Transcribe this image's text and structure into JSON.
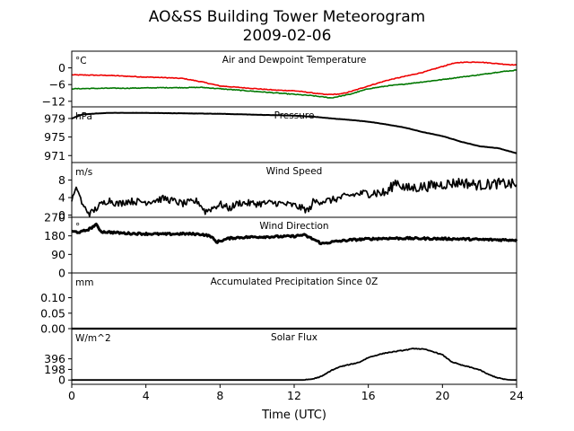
{
  "chart_data": {
    "type": "line",
    "title": "AO&SS Building Tower Meteorogram",
    "subtitle": "2009-02-06",
    "xlabel": "Time (UTC)",
    "x_ticks": [
      "0",
      "4",
      "8",
      "12",
      "16",
      "20",
      "24"
    ],
    "xlim": [
      0,
      24
    ],
    "panels": [
      {
        "name": "temperature",
        "title": "Air and Dewpoint Temperature",
        "unit": "°C",
        "ylim": [
          -14,
          6
        ],
        "ticks": [
          0,
          -6,
          -12
        ],
        "tick_labels": [
          "0",
          "−6",
          "−12"
        ],
        "series": [
          {
            "color": "#ee0000",
            "points": [
              [
                0,
                -2.5
              ],
              [
                1,
                -2.6
              ],
              [
                2,
                -2.7
              ],
              [
                3,
                -3.0
              ],
              [
                4,
                -3.3
              ],
              [
                5,
                -3.5
              ],
              [
                6,
                -3.8
              ],
              [
                7,
                -5.0
              ],
              [
                8,
                -6.5
              ],
              [
                9,
                -7.0
              ],
              [
                10,
                -7.5
              ],
              [
                11,
                -8.0
              ],
              [
                12,
                -8.2
              ],
              [
                13,
                -9.0
              ],
              [
                13.7,
                -9.6
              ],
              [
                14.5,
                -9.4
              ],
              [
                15,
                -8.6
              ],
              [
                16,
                -6.5
              ],
              [
                17,
                -4.5
              ],
              [
                18,
                -3.0
              ],
              [
                19,
                -1.5
              ],
              [
                20,
                0.5
              ],
              [
                20.5,
                1.5
              ],
              [
                21,
                2.0
              ],
              [
                22,
                2.1
              ],
              [
                23,
                1.5
              ],
              [
                24,
                1.0
              ]
            ]
          },
          {
            "color": "#007700",
            "points": [
              [
                0,
                -7.5
              ],
              [
                1,
                -7.4
              ],
              [
                2,
                -7.3
              ],
              [
                3,
                -7.3
              ],
              [
                4,
                -7.2
              ],
              [
                5,
                -7.1
              ],
              [
                6,
                -7.1
              ],
              [
                7,
                -7.0
              ],
              [
                8,
                -7.5
              ],
              [
                9,
                -8.0
              ],
              [
                10,
                -8.5
              ],
              [
                11,
                -9.0
              ],
              [
                12,
                -9.5
              ],
              [
                13,
                -10.0
              ],
              [
                14,
                -10.8
              ],
              [
                15,
                -9.5
              ],
              [
                16,
                -7.5
              ],
              [
                17,
                -6.5
              ],
              [
                18,
                -5.8
              ],
              [
                19,
                -5.0
              ],
              [
                20,
                -4.2
              ],
              [
                21,
                -3.3
              ],
              [
                22,
                -2.5
              ],
              [
                23,
                -1.5
              ],
              [
                24,
                -0.8
              ]
            ]
          }
        ]
      },
      {
        "name": "pressure",
        "title": "Pressure",
        "unit": "hPa",
        "ylim": [
          969.5,
          981.5
        ],
        "ticks": [
          979,
          975,
          971
        ],
        "tick_labels": [
          "979",
          "975",
          "971"
        ],
        "series": [
          {
            "color": "#000000",
            "points": [
              [
                0,
                979.0
              ],
              [
                0.6,
                979.9
              ],
              [
                2,
                980.2
              ],
              [
                4,
                980.2
              ],
              [
                6,
                980.1
              ],
              [
                8,
                980.0
              ],
              [
                10,
                979.8
              ],
              [
                12,
                979.6
              ],
              [
                13,
                979.4
              ],
              [
                14,
                979.0
              ],
              [
                15,
                978.7
              ],
              [
                16,
                978.3
              ],
              [
                17,
                977.7
              ],
              [
                18,
                977.0
              ],
              [
                19,
                976.0
              ],
              [
                20,
                975.2
              ],
              [
                21,
                974.0
              ],
              [
                22,
                973.0
              ],
              [
                23,
                972.6
              ],
              [
                24,
                971.5
              ]
            ]
          }
        ]
      },
      {
        "name": "wind-speed",
        "title": "Wind Speed",
        "unit": "m/s",
        "ylim": [
          -0.5,
          12
        ],
        "ticks": [
          8,
          4,
          0
        ],
        "tick_labels": [
          "8",
          "4",
          "0"
        ],
        "series": [
          {
            "color": "#000000",
            "points": [
              [
                0,
                3.5
              ],
              [
                0.3,
                6.2
              ],
              [
                0.6,
                2.0
              ],
              [
                1.0,
                0.3
              ],
              [
                1.5,
                2.2
              ],
              [
                2,
                3.5
              ],
              [
                2.5,
                2.5
              ],
              [
                3,
                3.2
              ],
              [
                4,
                3.0
              ],
              [
                5,
                3.8
              ],
              [
                6,
                2.6
              ],
              [
                6.8,
                3.2
              ],
              [
                7.2,
                0.8
              ],
              [
                8,
                2.5
              ],
              [
                8.5,
                1.5
              ],
              [
                9,
                2.8
              ],
              [
                10,
                2.6
              ],
              [
                11,
                2.8
              ],
              [
                12,
                2.2
              ],
              [
                12.8,
                1.0
              ],
              [
                13,
                3.0
              ],
              [
                14,
                3.4
              ],
              [
                15,
                4.5
              ],
              [
                16,
                5.2
              ],
              [
                17,
                5.0
              ],
              [
                17.5,
                7.8
              ],
              [
                18,
                6.0
              ],
              [
                19,
                6.5
              ],
              [
                20,
                7.0
              ],
              [
                21,
                7.5
              ],
              [
                22,
                6.8
              ],
              [
                23,
                7.2
              ],
              [
                24,
                7.0
              ]
            ]
          }
        ]
      },
      {
        "name": "wind-direction",
        "title": "Wind Direction",
        "unit": "°",
        "ylim": [
          0,
          270
        ],
        "ticks": [
          270,
          180,
          90,
          0
        ],
        "tick_labels": [
          "270",
          "180",
          "90",
          "0"
        ],
        "series": [
          {
            "color": "#000000",
            "points": [
              [
                0,
                200
              ],
              [
                0.5,
                198
              ],
              [
                1.0,
                215
              ],
              [
                1.3,
                235
              ],
              [
                1.6,
                200
              ],
              [
                2,
                198
              ],
              [
                3,
                192
              ],
              [
                4,
                190
              ],
              [
                5,
                188
              ],
              [
                6,
                190
              ],
              [
                7,
                188
              ],
              [
                7.5,
                178
              ],
              [
                7.8,
                150
              ],
              [
                8.5,
                168
              ],
              [
                9,
                172
              ],
              [
                10,
                175
              ],
              [
                11,
                176
              ],
              [
                12,
                178
              ],
              [
                12.5,
                185
              ],
              [
                13,
                165
              ],
              [
                13.5,
                142
              ],
              [
                14,
                150
              ],
              [
                15,
                160
              ],
              [
                16,
                165
              ],
              [
                17,
                168
              ],
              [
                18,
                168
              ],
              [
                19,
                167
              ],
              [
                20,
                166
              ],
              [
                21,
                165
              ],
              [
                22,
                162
              ],
              [
                23,
                161
              ],
              [
                24,
                160
              ]
            ]
          }
        ]
      },
      {
        "name": "precipitation",
        "title": "Accumulated Precipitation Since 0Z",
        "unit": "mm",
        "ylim": [
          0,
          0.18
        ],
        "ticks": [
          0.1,
          0.05,
          0.0
        ],
        "tick_labels": [
          "0.10",
          "0.05",
          "0.00"
        ],
        "series": [
          {
            "color": "#000000",
            "points": [
              [
                0,
                0
              ],
              [
                24,
                0
              ]
            ]
          }
        ]
      },
      {
        "name": "solar-flux",
        "title": "Solar Flux",
        "unit": "W/m^2",
        "ylim": [
          -80,
          960
        ],
        "ticks": [
          396,
          198,
          0
        ],
        "tick_labels": [
          "396",
          "198",
          "0"
        ],
        "series": [
          {
            "color": "#000000",
            "points": [
              [
                0,
                0
              ],
              [
                12.5,
                0
              ],
              [
                13,
                20
              ],
              [
                13.5,
                70
              ],
              [
                14,
                180
              ],
              [
                14.5,
                250
              ],
              [
                15,
                290
              ],
              [
                15.5,
                330
              ],
              [
                16,
                420
              ],
              [
                16.5,
                470
              ],
              [
                17,
                510
              ],
              [
                18,
                560
              ],
              [
                18.5,
                590
              ],
              [
                19,
                575
              ],
              [
                19.5,
                530
              ],
              [
                20,
                470
              ],
              [
                20.5,
                340
              ],
              [
                21,
                280
              ],
              [
                21.5,
                240
              ],
              [
                22,
                190
              ],
              [
                22.5,
                100
              ],
              [
                23,
                40
              ],
              [
                23.5,
                5
              ],
              [
                24,
                0
              ]
            ]
          }
        ]
      }
    ]
  }
}
